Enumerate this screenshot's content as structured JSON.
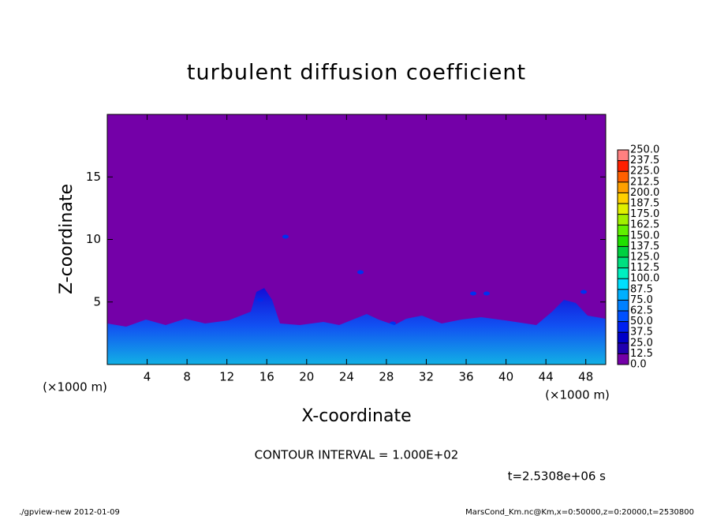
{
  "chart_data": {
    "type": "heatmap",
    "title": "turbulent diffusion coefficient",
    "xlabel": "X-coordinate",
    "ylabel": "Z-coordinate",
    "x_unit": "(×1000 m)",
    "xlim": [
      0,
      50
    ],
    "xticks": [
      4,
      8,
      12,
      16,
      20,
      24,
      28,
      32,
      36,
      40,
      44,
      48
    ],
    "ylim": [
      0,
      20
    ],
    "yticks": [
      5,
      10,
      15
    ],
    "levels": [
      {
        "value": 0,
        "label": "0.0"
      },
      12.5,
      {
        "value": 25,
        "label": "25.0"
      },
      37.5,
      {
        "value": 50,
        "label": "50.0"
      },
      62.5,
      {
        "value": 75,
        "label": "75.0"
      },
      87.5,
      {
        "value": 100,
        "label": "100.0"
      },
      112.5,
      {
        "value": 125,
        "label": "125.0"
      },
      137.5,
      {
        "value": 150,
        "label": "150.0"
      },
      162.5,
      {
        "value": 175,
        "label": "175.0"
      },
      187.5,
      {
        "value": 200,
        "label": "200.0"
      },
      212.5,
      {
        "value": 225,
        "label": "225.0"
      },
      237.5,
      {
        "value": 250,
        "label": "250.0"
      }
    ],
    "colors": [
      "#7400a8",
      "#2000b0",
      "#0000c8",
      "#0020f0",
      "#0050ff",
      "#0080ff",
      "#00b0ff",
      "#00e0ff",
      "#00f0c0",
      "#00e080",
      "#00d040",
      "#20e000",
      "#60f000",
      "#a0f000",
      "#e0f000",
      "#ffd000",
      "#ffa000",
      "#ff6000",
      "#ff2000",
      "#ff8080"
    ],
    "contour_interval": "CONTOUR INTERVAL = 1.000E+02",
    "time": "t=2.5308e+06 s",
    "footer_left": "./gpview-new  2012-01-09",
    "footer_right": "MarsCond_Km.nc@Km,x=0:50000,z=0:20000,t=2530800"
  }
}
